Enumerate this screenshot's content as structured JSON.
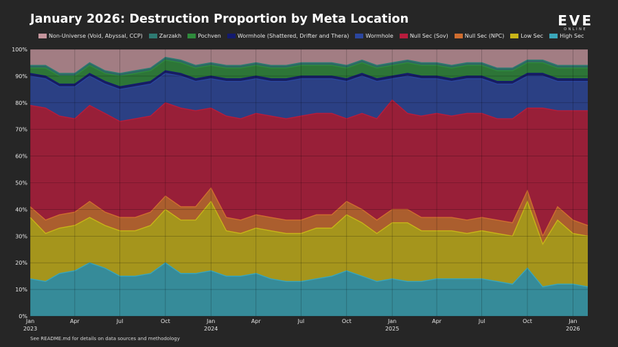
{
  "chart_data": {
    "type": "area",
    "stacked": true,
    "normalized": true,
    "title": "January 2026: Destruction Proportion by Meta Location",
    "x_ticks": [
      {
        "date": "2023-01-01",
        "month": "Jan",
        "year": "2023"
      },
      {
        "date": "2023-04-01",
        "month": "Apr",
        "year": ""
      },
      {
        "date": "2023-07-01",
        "month": "Jul",
        "year": ""
      },
      {
        "date": "2023-10-01",
        "month": "Oct",
        "year": ""
      },
      {
        "date": "2024-01-01",
        "month": "Jan",
        "year": "2024"
      },
      {
        "date": "2024-04-01",
        "month": "Apr",
        "year": ""
      },
      {
        "date": "2024-07-01",
        "month": "Jul",
        "year": ""
      },
      {
        "date": "2024-10-01",
        "month": "Oct",
        "year": ""
      },
      {
        "date": "2025-01-01",
        "month": "Jan",
        "year": "2025"
      },
      {
        "date": "2025-04-01",
        "month": "Apr",
        "year": ""
      },
      {
        "date": "2025-07-01",
        "month": "Jul",
        "year": ""
      },
      {
        "date": "2025-10-01",
        "month": "Oct",
        "year": ""
      },
      {
        "date": "2026-01-01",
        "month": "Jan",
        "year": "2026"
      }
    ],
    "x_range": [
      "2023-01-01",
      "2026-01-31"
    ],
    "y_ticks": [
      "0%",
      "10%",
      "20%",
      "30%",
      "40%",
      "50%",
      "60%",
      "70%",
      "80%",
      "90%",
      "100%"
    ],
    "ylim": [
      0,
      100
    ],
    "grid": true,
    "legend_position": "top",
    "dates": [
      "2023-01-01",
      "2023-02-01",
      "2023-03-01",
      "2023-04-01",
      "2023-05-01",
      "2023-06-01",
      "2023-07-01",
      "2023-08-01",
      "2023-09-01",
      "2023-10-01",
      "2023-11-01",
      "2023-12-01",
      "2024-01-01",
      "2024-02-01",
      "2024-03-01",
      "2024-04-01",
      "2024-05-01",
      "2024-06-01",
      "2024-07-01",
      "2024-08-01",
      "2024-09-01",
      "2024-10-01",
      "2024-11-01",
      "2024-12-01",
      "2025-01-01",
      "2025-02-01",
      "2025-03-01",
      "2025-04-01",
      "2025-05-01",
      "2025-06-01",
      "2025-07-01",
      "2025-08-01",
      "2025-09-01",
      "2025-10-01",
      "2025-11-01",
      "2025-12-01",
      "2026-01-01",
      "2026-01-31"
    ],
    "series": [
      {
        "name": "High Sec",
        "color": "#3aa6b9",
        "values": [
          14,
          13,
          16,
          17,
          20,
          18,
          15,
          15,
          16,
          20,
          16,
          16,
          17,
          15,
          15,
          16,
          14,
          13,
          13,
          14,
          15,
          17,
          15,
          13,
          14,
          13,
          13,
          14,
          14,
          14,
          14,
          13,
          12,
          18,
          11,
          12,
          12,
          11
        ]
      },
      {
        "name": "Low Sec",
        "color": "#c8b418",
        "values": [
          23,
          18,
          17,
          17,
          17,
          16,
          17,
          17,
          18,
          20,
          20,
          20,
          26,
          17,
          16,
          17,
          18,
          18,
          18,
          19,
          18,
          21,
          20,
          18,
          21,
          22,
          19,
          18,
          18,
          17,
          18,
          18,
          18,
          25,
          16,
          24,
          19,
          19
        ]
      },
      {
        "name": "Null Sec (NPC)",
        "color": "#cf6d2f",
        "values": [
          4,
          5,
          5,
          5,
          6,
          5,
          5,
          5,
          5,
          5,
          5,
          5,
          5,
          5,
          5,
          5,
          5,
          5,
          5,
          5,
          5,
          5,
          5,
          5,
          5,
          5,
          5,
          5,
          5,
          5,
          5,
          5,
          5,
          4,
          3,
          5,
          5,
          4
        ]
      },
      {
        "name": "Null Sec (Sov)",
        "color": "#b71c3c",
        "values": [
          38,
          42,
          37,
          35,
          36,
          37,
          36,
          37,
          36,
          35,
          37,
          36,
          30,
          38,
          38,
          38,
          38,
          38,
          39,
          38,
          38,
          31,
          36,
          38,
          41,
          36,
          38,
          39,
          38,
          40,
          39,
          38,
          39,
          31,
          48,
          36,
          41,
          43
        ]
      },
      {
        "name": "Wormhole",
        "color": "#2b469e",
        "values": [
          11,
          11,
          11,
          12,
          11,
          11,
          12,
          12,
          12,
          11,
          12,
          11,
          11,
          13,
          14,
          13,
          13,
          14,
          14,
          13,
          13,
          14,
          14,
          14,
          8,
          14,
          14,
          13,
          13,
          13,
          13,
          13,
          13,
          12,
          12,
          11,
          11,
          11
        ]
      },
      {
        "name": "Wormhole (Shattered, Drifter and Thera)",
        "color": "#131a6e",
        "values": [
          1,
          1,
          1,
          1,
          1,
          1,
          1,
          1,
          1,
          1,
          1,
          1,
          1,
          1,
          1,
          1,
          1,
          1,
          1,
          1,
          1,
          1,
          1,
          1,
          1,
          1,
          1,
          1,
          1,
          1,
          1,
          1,
          1,
          1,
          1,
          1,
          1,
          1
        ]
      },
      {
        "name": "Pochven",
        "color": "#2e8a3b",
        "values": [
          2,
          3,
          3,
          3,
          3,
          3,
          4,
          4,
          4,
          4,
          4,
          4,
          4,
          4,
          4,
          4,
          4,
          4,
          4,
          4,
          4,
          4,
          4,
          4,
          4,
          4,
          4,
          4,
          4,
          4,
          4,
          4,
          4,
          4,
          4,
          4,
          4,
          4
        ]
      },
      {
        "name": "Zarzakh",
        "color": "#2e7a72",
        "values": [
          1,
          1,
          1,
          1,
          1,
          1,
          1,
          1,
          1,
          1,
          1,
          1,
          1,
          1,
          1,
          1,
          1,
          1,
          1,
          1,
          1,
          1,
          1,
          1,
          1,
          1,
          1,
          1,
          1,
          1,
          1,
          1,
          1,
          1,
          1,
          1,
          1,
          1
        ]
      },
      {
        "name": "Non-Universe (Void, Abyssal, CCP)",
        "color": "#c4959c",
        "values": [
          6,
          6,
          9,
          9,
          5,
          8,
          9,
          8,
          7,
          3,
          4,
          6,
          5,
          8,
          6,
          5,
          7,
          6,
          5,
          5,
          5,
          6,
          4,
          6,
          5,
          5,
          5,
          5,
          6,
          5,
          5,
          7,
          7,
          4,
          4,
          6,
          6,
          6
        ]
      }
    ]
  },
  "logo": {
    "word": "EVE",
    "sub": "ONLINE"
  },
  "footnote": "See README.md for details on data sources and methodology"
}
